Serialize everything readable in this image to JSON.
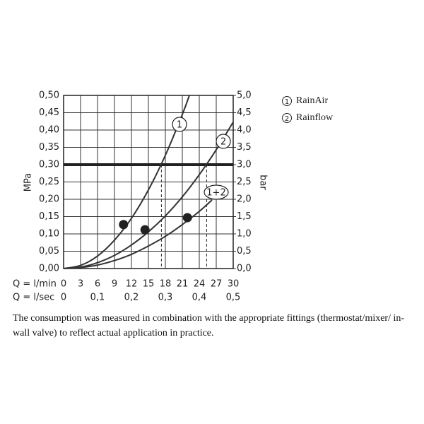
{
  "chart_data": {
    "type": "line",
    "y_label": "MPa",
    "y2_label": "bar",
    "x_label": "Q = l/min",
    "x2_label": "Q = l/sec",
    "xlim": [
      0,
      30
    ],
    "xticks": [
      0,
      3,
      6,
      9,
      12,
      15,
      18,
      21,
      24,
      27,
      30
    ],
    "x2lim": [
      0,
      0.5
    ],
    "x2ticks": [
      0,
      {
        "value": 0.1,
        "label": "0,1"
      },
      {
        "value": 0.2,
        "label": "0,2"
      },
      {
        "value": 0.3,
        "label": "0,3"
      },
      {
        "value": 0.4,
        "label": "0,4"
      },
      {
        "value": 0.5,
        "label": "0,5"
      }
    ],
    "ylim": [
      0,
      0.5
    ],
    "yticks": [
      {
        "value": 0,
        "label": "0,00"
      },
      {
        "value": 0.05,
        "label": "0,05"
      },
      {
        "value": 0.1,
        "label": "0,10"
      },
      {
        "value": 0.15,
        "label": "0,15"
      },
      {
        "value": 0.2,
        "label": "0,20"
      },
      {
        "value": 0.25,
        "label": "0,25"
      },
      {
        "value": 0.3,
        "label": "0,30"
      },
      {
        "value": 0.35,
        "label": "0,35"
      },
      {
        "value": 0.4,
        "label": "0,40"
      },
      {
        "value": 0.45,
        "label": "0,45"
      },
      {
        "value": 0.5,
        "label": "0,50"
      }
    ],
    "y2lim": [
      0,
      5
    ],
    "y2ticks": [
      {
        "value": 0,
        "label": "0,0"
      },
      {
        "value": 0.5,
        "label": "0,5"
      },
      {
        "value": 1,
        "label": "1,0"
      },
      {
        "value": 1.5,
        "label": "1,5"
      },
      {
        "value": 2,
        "label": "2,0"
      },
      {
        "value": 2.5,
        "label": "2,5"
      },
      {
        "value": 3,
        "label": "3,0"
      },
      {
        "value": 3.5,
        "label": "3,5"
      },
      {
        "value": 4,
        "label": "4,0"
      },
      {
        "value": 4.5,
        "label": "4,5"
      },
      {
        "value": 5,
        "label": "5,0"
      }
    ],
    "grid": true,
    "reference_line": 0.3,
    "drop_lines_x": [
      17.3,
      25.3
    ],
    "series": [
      {
        "name": "1",
        "color": "#333333",
        "x": [
          0,
          3,
          6,
          9,
          12,
          15,
          18,
          21,
          22.25
        ],
        "values": [
          0,
          0.009,
          0.036,
          0.082,
          0.145,
          0.227,
          0.327,
          0.445,
          0.5
        ]
      },
      {
        "name": "2",
        "color": "#333333",
        "x": [
          0,
          3,
          6,
          9,
          12,
          15,
          18,
          21,
          24,
          27,
          30
        ],
        "values": [
          0,
          0.004,
          0.017,
          0.038,
          0.068,
          0.106,
          0.152,
          0.207,
          0.271,
          0.343,
          0.423
        ]
      },
      {
        "name": "1+2",
        "color": "#333333",
        "x": [
          0,
          3,
          6,
          9,
          12,
          15,
          18,
          21,
          24,
          26.25
        ],
        "values": [
          0,
          0.003,
          0.01,
          0.023,
          0.041,
          0.065,
          0.093,
          0.127,
          0.165,
          0.198
        ]
      }
    ],
    "points": {
      "color": "#222222",
      "x": [
        10.6,
        14.4,
        21.9
      ],
      "values": [
        0.127,
        0.112,
        0.147
      ]
    },
    "legend": [
      {
        "marker": "1",
        "label": "RainAir"
      },
      {
        "marker": "2",
        "label": "Rainflow"
      }
    ]
  },
  "caption": "The consumption was measured in combination with the appropriate fittings (thermostat/mixer/ in-wall valve) to reflect actual application in practice."
}
